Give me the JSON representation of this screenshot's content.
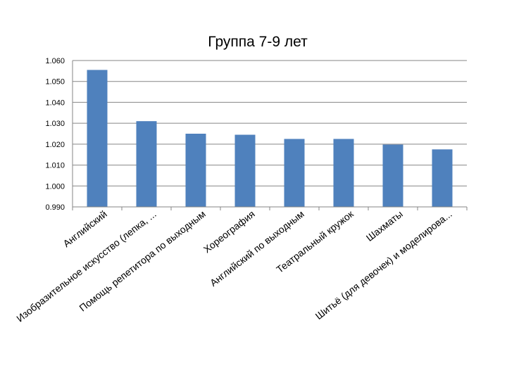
{
  "chart_data": {
    "type": "bar",
    "title": "Группа 7-9 лет",
    "xlabel": "",
    "ylabel": "",
    "categories": [
      "Английский",
      "Изобразительное искусство (лепка, ...",
      "Помощь репетитора по выходным",
      "Хореография",
      "Английский по выходным",
      "Театральный кружок",
      "Шахматы",
      "Шитьё (для девочек) и моделирова..."
    ],
    "values": [
      1.0555,
      1.031,
      1.025,
      1.0245,
      1.0225,
      1.0225,
      1.0198,
      1.0175
    ],
    "ylim": [
      0.99,
      1.06
    ],
    "yticks": [
      "0.990",
      "1.000",
      "1.010",
      "1.020",
      "1.030",
      "1.040",
      "1.050",
      "1.060"
    ],
    "grid": true,
    "legend": "none",
    "colors": {
      "bar": "#4f81bd",
      "grid": "#868686",
      "axis": "#868686"
    }
  }
}
